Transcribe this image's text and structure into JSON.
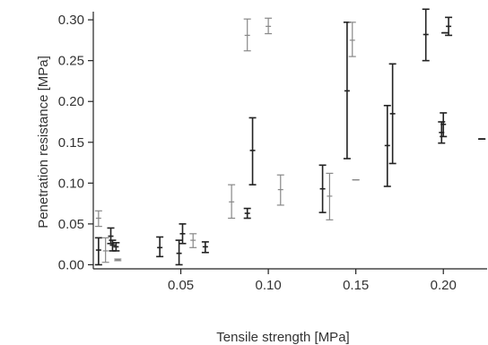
{
  "chart_data": {
    "type": "scatter",
    "title": "",
    "xlabel": "Tensile strength [MPa]",
    "ylabel": "Penetration resistance [MPa]",
    "xlim": [
      0.0,
      0.225
    ],
    "ylim": [
      -0.005,
      0.31
    ],
    "xticks": [
      0.05,
      0.1,
      0.15,
      0.2
    ],
    "xtick_labels": [
      "0.05",
      "0.10",
      "0.15",
      "0.20"
    ],
    "yticks": [
      0.0,
      0.05,
      0.1,
      0.15,
      0.2,
      0.25,
      0.3
    ],
    "ytick_labels": [
      "0.00",
      "0.05",
      "0.10",
      "0.15",
      "0.20",
      "0.25",
      "0.30"
    ],
    "grid": false,
    "legend": "none",
    "colors": {
      "dark": "#222222",
      "light": "#888888"
    },
    "points": [
      {
        "x": 0.003,
        "y": 0.057,
        "ylow": 0.047,
        "yhigh": 0.066,
        "shade": "light"
      },
      {
        "x": 0.003,
        "y": 0.018,
        "ylow": 0.0,
        "yhigh": 0.033,
        "shade": "dark"
      },
      {
        "x": 0.007,
        "y": 0.017,
        "ylow": 0.003,
        "yhigh": 0.033,
        "shade": "light"
      },
      {
        "x": 0.01,
        "y": 0.035,
        "ylow": 0.026,
        "yhigh": 0.045,
        "shade": "dark"
      },
      {
        "x": 0.011,
        "y": 0.024,
        "ylow": 0.017,
        "yhigh": 0.03,
        "shade": "dark"
      },
      {
        "x": 0.013,
        "y": 0.022,
        "ylow": 0.017,
        "yhigh": 0.027,
        "shade": "dark"
      },
      {
        "x": 0.014,
        "y": 0.006,
        "ylow": 0.005,
        "yhigh": 0.007,
        "shade": "light"
      },
      {
        "x": 0.038,
        "y": 0.021,
        "ylow": 0.01,
        "yhigh": 0.034,
        "shade": "dark"
      },
      {
        "x": 0.049,
        "y": 0.014,
        "ylow": 0.0,
        "yhigh": 0.03,
        "shade": "dark"
      },
      {
        "x": 0.051,
        "y": 0.038,
        "ylow": 0.026,
        "yhigh": 0.05,
        "shade": "dark"
      },
      {
        "x": 0.057,
        "y": 0.03,
        "ylow": 0.021,
        "yhigh": 0.038,
        "shade": "light"
      },
      {
        "x": 0.064,
        "y": 0.022,
        "ylow": 0.015,
        "yhigh": 0.028,
        "shade": "dark"
      },
      {
        "x": 0.079,
        "y": 0.077,
        "ylow": 0.057,
        "yhigh": 0.098,
        "shade": "light"
      },
      {
        "x": 0.088,
        "y": 0.281,
        "ylow": 0.262,
        "yhigh": 0.301,
        "shade": "light"
      },
      {
        "x": 0.088,
        "y": 0.063,
        "ylow": 0.057,
        "yhigh": 0.069,
        "shade": "dark"
      },
      {
        "x": 0.091,
        "y": 0.14,
        "ylow": 0.098,
        "yhigh": 0.18,
        "shade": "dark"
      },
      {
        "x": 0.1,
        "y": 0.292,
        "ylow": 0.283,
        "yhigh": 0.302,
        "shade": "light"
      },
      {
        "x": 0.107,
        "y": 0.092,
        "ylow": 0.073,
        "yhigh": 0.11,
        "shade": "light"
      },
      {
        "x": 0.131,
        "y": 0.093,
        "ylow": 0.064,
        "yhigh": 0.122,
        "shade": "dark"
      },
      {
        "x": 0.135,
        "y": 0.084,
        "ylow": 0.055,
        "yhigh": 0.112,
        "shade": "light"
      },
      {
        "x": 0.145,
        "y": 0.213,
        "ylow": 0.13,
        "yhigh": 0.297,
        "shade": "dark"
      },
      {
        "x": 0.148,
        "y": 0.275,
        "ylow": 0.255,
        "yhigh": 0.297,
        "shade": "light"
      },
      {
        "x": 0.15,
        "y": 0.104,
        "ylow": 0.104,
        "yhigh": 0.104,
        "shade": "light"
      },
      {
        "x": 0.168,
        "y": 0.146,
        "ylow": 0.096,
        "yhigh": 0.195,
        "shade": "dark"
      },
      {
        "x": 0.171,
        "y": 0.185,
        "ylow": 0.124,
        "yhigh": 0.246,
        "shade": "dark"
      },
      {
        "x": 0.19,
        "y": 0.282,
        "ylow": 0.25,
        "yhigh": 0.313,
        "shade": "dark"
      },
      {
        "x": 0.199,
        "y": 0.162,
        "ylow": 0.149,
        "yhigh": 0.175,
        "shade": "dark"
      },
      {
        "x": 0.2,
        "y": 0.172,
        "ylow": 0.157,
        "yhigh": 0.186,
        "shade": "dark"
      },
      {
        "x": 0.201,
        "y": 0.284,
        "ylow": 0.284,
        "yhigh": 0.284,
        "shade": "dark"
      },
      {
        "x": 0.203,
        "y": 0.292,
        "ylow": 0.281,
        "yhigh": 0.303,
        "shade": "dark"
      },
      {
        "x": 0.222,
        "y": 0.154,
        "ylow": 0.154,
        "yhigh": 0.154,
        "shade": "dark"
      }
    ]
  }
}
